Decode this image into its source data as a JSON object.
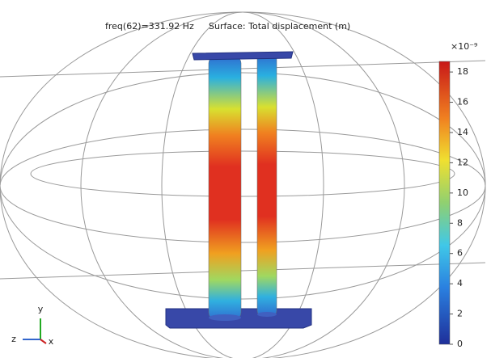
{
  "plot": {
    "frequency": "freq(62)=331.92 Hz",
    "surface": "Surface: Total displacement (m)"
  },
  "colorbar": {
    "exponent": "×10⁻⁹",
    "lim": [
      0,
      18.7
    ],
    "ticks": [
      0,
      2,
      4,
      6,
      8,
      10,
      12,
      14,
      16,
      18
    ]
  },
  "triad": {
    "y": "y",
    "z": "z",
    "x": "x"
  }
}
